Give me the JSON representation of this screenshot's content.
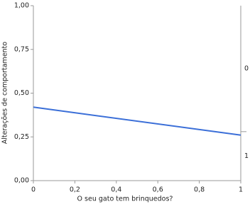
{
  "chart_data": {
    "type": "line",
    "x_label": "O seu gato tem brinquedos?",
    "y_label": "Alterações de comportamento",
    "x": [
      0,
      1
    ],
    "series": [
      {
        "color": "#3b6fd8",
        "values": [
          0.42,
          0.26
        ]
      }
    ],
    "xlim": [
      0,
      1
    ],
    "xticks": [
      0,
      {
        "value": 0.2,
        "label": "0,2"
      },
      {
        "value": 0.4,
        "label": "0,4"
      },
      {
        "value": 0.6,
        "label": "0,6"
      },
      {
        "value": 0.8,
        "label": "0,8"
      },
      1
    ],
    "ylim": [
      0,
      1
    ],
    "yticks": [
      {
        "value": 0,
        "label": "0,00"
      },
      {
        "value": 0.25,
        "label": "0,25"
      },
      {
        "value": 0.5,
        "label": "0,50"
      },
      {
        "value": 0.75,
        "label": "0,75"
      },
      {
        "value": 1,
        "label": "1,00"
      }
    ],
    "y2_categories": [
      "1",
      "0"
    ],
    "y2_breaks": [
      0.28
    ],
    "grid": false
  }
}
